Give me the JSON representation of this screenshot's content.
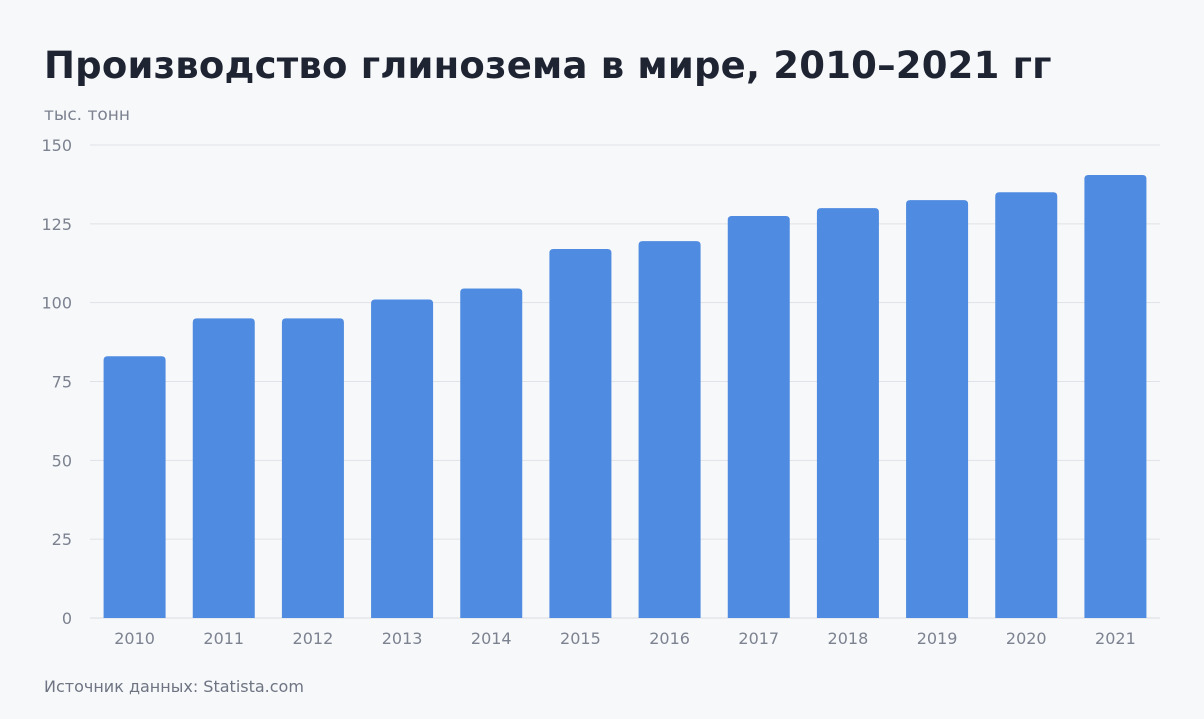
{
  "title": "Производство глинозема в мире, 2010–2021 гг",
  "source": "Источник данных: Statista.com",
  "colors": {
    "bar": "#4f8be0",
    "grid": "#dfe2e8",
    "background": "#f7f8fa"
  },
  "chart_data": {
    "type": "bar",
    "title": "Производство глинозема в мире, 2010–2021 гг",
    "ylabel": "тыс. тонн",
    "xlabel": "",
    "ylim": [
      0,
      150
    ],
    "yticks": [
      0,
      25,
      50,
      75,
      100,
      125,
      150
    ],
    "grid": true,
    "categories": [
      "2010",
      "2011",
      "2012",
      "2013",
      "2014",
      "2015",
      "2016",
      "2017",
      "2018",
      "2019",
      "2020",
      "2021"
    ],
    "values": [
      83,
      95,
      95,
      101,
      104.5,
      117,
      119.5,
      127.5,
      130,
      132.5,
      135,
      140.5
    ]
  }
}
